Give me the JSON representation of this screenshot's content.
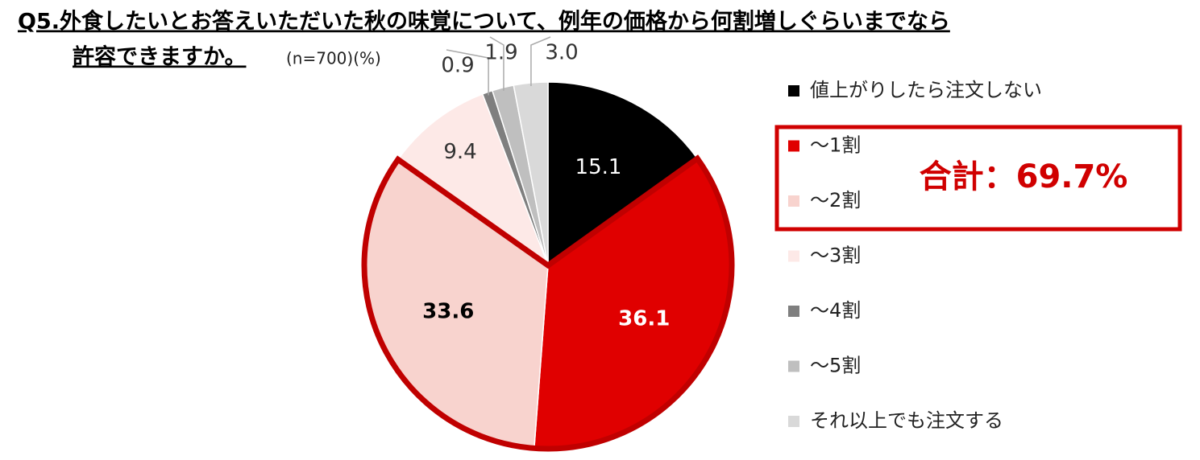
{
  "chart_data": {
    "type": "pie",
    "title": [
      "Q5.外食したいとお答えいただいた秋の味覚について、例年の価格から何割増しぐらいまでなら",
      "許容できますか。"
    ],
    "subtitle": "(n=700)(%)",
    "categories": [
      "値上がりしたら注文しない",
      "～1割",
      "～2割",
      "～3割",
      "～4割",
      "～5割",
      "それ以上でも注文する"
    ],
    "values": [
      15.1,
      36.1,
      33.6,
      9.4,
      0.9,
      1.9,
      3.0
    ],
    "value_labels": [
      "15.1",
      "36.1",
      "33.6",
      "9.4",
      "0.9",
      "1.9",
      "3.0"
    ],
    "colors": [
      "#000000",
      "#e00000",
      "#f8d3ce",
      "#fde9e7",
      "#7f7f7f",
      "#bfbfbf",
      "#d9d9d9"
    ],
    "highlight": [
      1,
      2
    ],
    "annotation": "合計：69.7%",
    "legend": "right"
  }
}
